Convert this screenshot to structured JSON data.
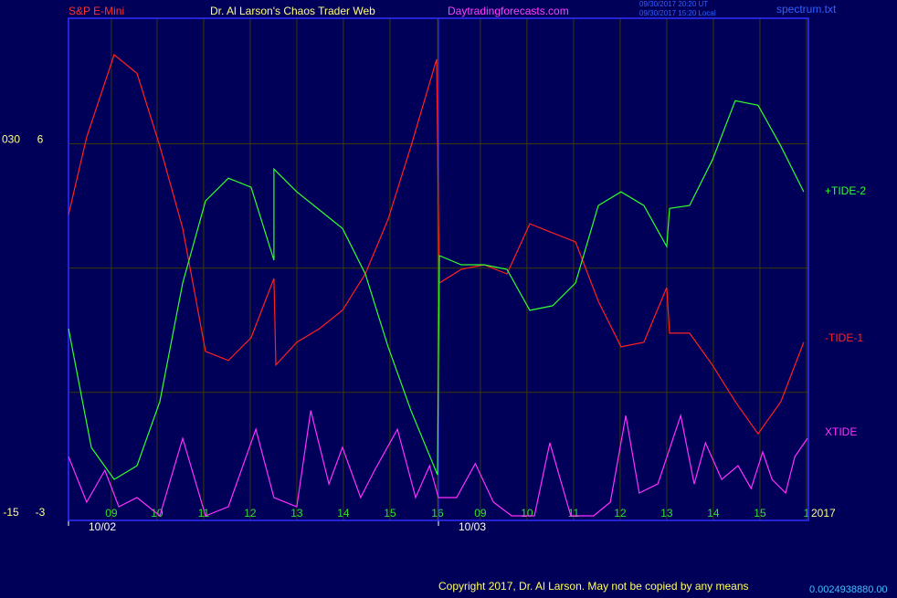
{
  "header": {
    "symbol": "S&P E-Mini",
    "site": "Dr. Al Larson's Chaos Trader Web",
    "url": "Daytradingforecasts.com",
    "time_ut": "09/30/2017 20:20 UT",
    "time_local": "09/30/2017 15:20 Local",
    "file": "spectrum.txt"
  },
  "chart_data": {
    "type": "line",
    "xlim": [
      0,
      15.88
    ],
    "ylim": [
      -3.09,
      9.03
    ],
    "y2lim": [
      -15.45,
      45.15
    ],
    "yticks": [
      -3,
      6
    ],
    "y2ticks": [
      -15,
      {
        "value": 30,
        "label": "030"
      }
    ],
    "ygrid": [
      0,
      3,
      6
    ],
    "xticks": [
      {
        "value": 0.92,
        "label": "09"
      },
      {
        "value": 1.9,
        "label": "10"
      },
      {
        "value": 2.9,
        "label": "11"
      },
      {
        "value": 3.9,
        "label": "12"
      },
      {
        "value": 4.9,
        "label": "13"
      },
      {
        "value": 5.9,
        "label": "14"
      },
      {
        "value": 6.9,
        "label": "15"
      },
      {
        "value": 7.92,
        "label": "16"
      },
      {
        "value": 8.84,
        "label": "09"
      },
      {
        "value": 9.84,
        "label": "10"
      },
      {
        "value": 10.84,
        "label": "11"
      },
      {
        "value": 11.84,
        "label": "12"
      },
      {
        "value": 12.84,
        "label": "13"
      },
      {
        "value": 13.84,
        "label": "14"
      },
      {
        "value": 14.84,
        "label": "15"
      },
      {
        "value": 15.84,
        "label": "1"
      }
    ],
    "date_ticks": [
      {
        "value": 0,
        "label": "10/02"
      },
      {
        "value": 7.94,
        "label": "10/03"
      }
    ],
    "year": "2017",
    "series": [
      {
        "name": "-TIDE-1",
        "color": "#ff2020",
        "x": [
          0,
          0.39,
          0.98,
          1.47,
          1.96,
          2.45,
          2.94,
          3.43,
          3.92,
          4.41,
          4.45,
          4.9,
          5.39,
          5.88,
          6.37,
          6.86,
          7.35,
          7.9,
          7.96,
          8.43,
          8.92,
          9.41,
          9.9,
          10.39,
          10.88,
          11.37,
          11.86,
          12.35,
          12.84,
          12.9,
          13.33,
          13.82,
          14.31,
          14.8,
          15.29,
          15.78
        ],
        "values": [
          4.29,
          6.16,
          8.15,
          7.7,
          5.94,
          3.96,
          0.99,
          0.77,
          1.32,
          2.75,
          0.66,
          1.21,
          1.54,
          1.98,
          2.86,
          4.18,
          5.94,
          8.04,
          2.64,
          2.97,
          3.08,
          2.86,
          4.07,
          3.85,
          3.63,
          2.2,
          1.1,
          1.21,
          2.53,
          1.43,
          1.43,
          0.66,
          -0.22,
          -1.0,
          -0.22,
          1.21
        ]
      },
      {
        "name": "+TIDE-2",
        "color": "#30ff30",
        "x": [
          0,
          0.49,
          0.98,
          1.47,
          1.96,
          2.45,
          2.94,
          3.43,
          3.92,
          4.41,
          4.41,
          4.9,
          5.39,
          5.88,
          6.37,
          6.86,
          7.35,
          7.92,
          7.96,
          8.43,
          8.92,
          9.41,
          9.9,
          10.39,
          10.88,
          11.37,
          11.86,
          12.35,
          12.84,
          12.9,
          13.33,
          13.82,
          14.31,
          14.8,
          15.29,
          15.78
        ],
        "values": [
          1.54,
          -1.33,
          -2.1,
          -1.77,
          -0.22,
          2.64,
          4.62,
          5.17,
          4.95,
          3.19,
          5.39,
          4.84,
          4.4,
          3.96,
          2.86,
          1.1,
          -0.44,
          -1.99,
          3.3,
          3.08,
          3.08,
          2.97,
          1.98,
          2.09,
          2.64,
          4.51,
          4.84,
          4.51,
          3.52,
          4.44,
          4.51,
          5.61,
          7.04,
          6.93,
          5.94,
          4.84
        ]
      },
      {
        "name": "XTIDE",
        "color": "#ff30ff",
        "x": [
          0,
          0.39,
          0.78,
          1.08,
          1.47,
          1.96,
          2.45,
          2.94,
          3.43,
          4.02,
          4.41,
          4.9,
          5.2,
          5.59,
          5.88,
          6.27,
          6.57,
          7.06,
          7.45,
          7.75,
          7.94,
          8.33,
          8.73,
          9.12,
          9.51,
          10.0,
          10.33,
          10.78,
          11.27,
          11.63,
          11.96,
          12.25,
          12.65,
          13.14,
          13.43,
          13.67,
          14.02,
          14.37,
          14.65,
          14.9,
          15.1,
          15.39,
          15.59,
          15.86
        ],
        "values": [
          -1.55,
          -2.65,
          -1.88,
          -2.76,
          -2.54,
          -2.98,
          -1.11,
          -2.98,
          -2.76,
          -0.89,
          -2.54,
          -2.76,
          -0.44,
          -2.21,
          -1.33,
          -2.54,
          -1.88,
          -0.89,
          -2.54,
          -1.77,
          -2.54,
          -2.54,
          -1.72,
          -2.65,
          -2.98,
          -2.98,
          -1.22,
          -2.98,
          -2.98,
          -2.65,
          -0.56,
          -2.43,
          -2.21,
          -0.56,
          -2.21,
          -1.22,
          -2.1,
          -1.77,
          -2.32,
          -1.44,
          -2.1,
          -2.43,
          -1.55,
          -1.11
        ]
      }
    ]
  },
  "footer": {
    "copyright": "Copyright 2017, Dr. Al Larson. May not be copied by any means",
    "code": "0.0024938880.00"
  }
}
